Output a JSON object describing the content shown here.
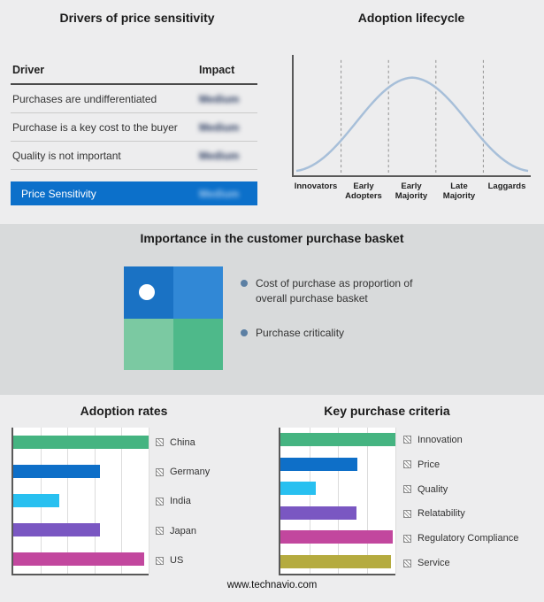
{
  "drivers": {
    "title": "Drivers of price sensitivity",
    "columns": [
      "Driver",
      "Impact"
    ],
    "rows": [
      {
        "driver": "Purchases are undifferentiated",
        "impact": "Medium",
        "redacted": true
      },
      {
        "driver": "Purchase is a key cost to the buyer",
        "impact": "Medium",
        "redacted": true
      },
      {
        "driver": "Quality is not important",
        "impact": "Medium",
        "redacted": true
      }
    ],
    "summary_row": {
      "label": "Price Sensitivity",
      "impact": "Medium",
      "redacted": true
    },
    "highlight_color": "#0c70ca"
  },
  "basket": {
    "title": "Importance in the customer purchase basket",
    "bullets": [
      "Cost of purchase as proportion of overall purchase basket",
      "Purchase criticality"
    ],
    "quadrant_colors": [
      "#1a72c4",
      "#3188d6",
      "#7bc9a2",
      "#4eb98a"
    ],
    "bullet_color": "#5b7fa3"
  },
  "footer": {
    "url": "www.technavio.com"
  },
  "chart_data": [
    {
      "type": "line",
      "title": "Adoption lifecycle",
      "x_categories": [
        "Innovators",
        "Early Adopters",
        "Early Majority",
        "Late Majority",
        "Laggards"
      ],
      "shape": "bell curve rising from Innovators, peaking over Early Majority, falling to Laggards",
      "separators": "dashed vertical lines between the five stages",
      "line_color": "#a7bfd9",
      "legend_position": "none"
    },
    {
      "type": "bar",
      "orientation": "horizontal",
      "title": "Adoption rates",
      "categories": [
        "China",
        "Germany",
        "India",
        "Japan",
        "US"
      ],
      "values": [
        100,
        64,
        34,
        64,
        97
      ],
      "xlim": [
        0,
        100
      ],
      "colors": [
        "#45b481",
        "#0e6fc8",
        "#28c0f0",
        "#7a57c2",
        "#c2479e"
      ],
      "gridlines_pct": [
        20,
        40,
        60,
        80,
        100
      ],
      "legend_position": "right"
    },
    {
      "type": "bar",
      "orientation": "horizontal",
      "title": "Key purchase criteria",
      "categories": [
        "Innovation",
        "Price",
        "Quality",
        "Relatability",
        "Regulatory Compliance",
        "Service"
      ],
      "values": [
        100,
        67,
        31,
        66,
        98,
        96
      ],
      "xlim": [
        0,
        100
      ],
      "colors": [
        "#45b481",
        "#0e6fc8",
        "#28c0f0",
        "#7a57c2",
        "#c2479e",
        "#b5ab3f"
      ],
      "gridlines_pct": [
        25,
        50,
        75,
        100
      ],
      "legend_position": "right"
    }
  ]
}
